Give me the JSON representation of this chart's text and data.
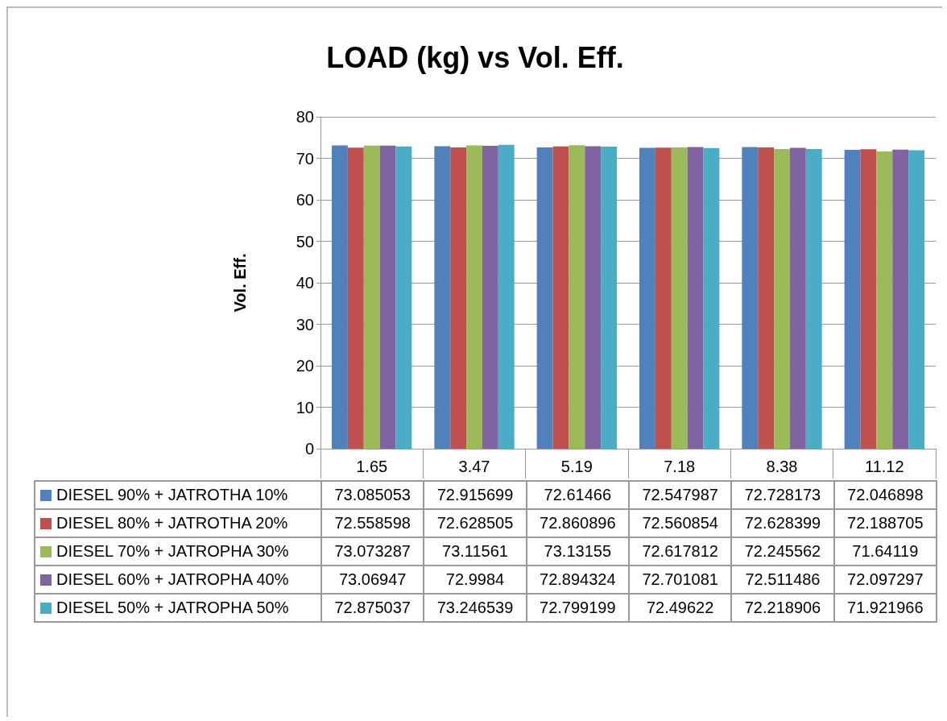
{
  "chart_data": {
    "type": "bar",
    "title": "LOAD (kg) vs Vol. Eff.",
    "ylabel": "Vol. Eff.",
    "categories": [
      "1.65",
      "3.47",
      "5.19",
      "7.18",
      "8.38",
      "11.12"
    ],
    "series": [
      {
        "name": "DIESEL 90% + JATROTHA 10%",
        "color": "#4f81bd",
        "values": [
          73.085053,
          72.915699,
          72.61466,
          72.547987,
          72.728173,
          72.046898
        ]
      },
      {
        "name": "DIESEL 80% + JATROTHA 20%",
        "color": "#c0504d",
        "values": [
          72.558598,
          72.628505,
          72.860896,
          72.560854,
          72.628399,
          72.188705
        ]
      },
      {
        "name": "DIESEL 70% + JATROPHA 30%",
        "color": "#9bbb59",
        "values": [
          73.073287,
          73.11561,
          73.13155,
          72.617812,
          72.245562,
          71.64119
        ]
      },
      {
        "name": "DIESEL 60% + JATROPHA 40%",
        "color": "#8064a2",
        "values": [
          73.06947,
          72.9984,
          72.894324,
          72.701081,
          72.511486,
          72.097297
        ]
      },
      {
        "name": "DIESEL 50% + JATROPHA 50%",
        "color": "#4bacc6",
        "values": [
          72.875037,
          73.246539,
          72.799199,
          72.49622,
          72.218906,
          71.921966
        ]
      }
    ],
    "ylim": [
      0,
      80
    ],
    "yticks": [
      0,
      10,
      20,
      30,
      40,
      50,
      60,
      70,
      80
    ],
    "grid": "y",
    "legend": "bottom",
    "data_labels": true
  }
}
